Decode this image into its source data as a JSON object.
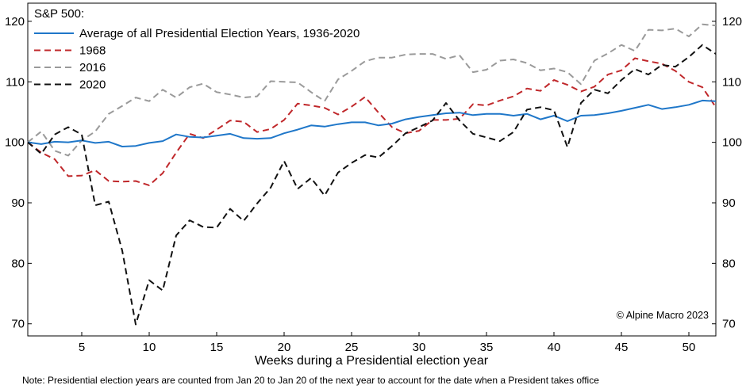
{
  "chart_data": {
    "type": "line",
    "title": "S&P 500:",
    "xlabel": "Weeks during a Presidential election year",
    "ylabel": "",
    "xlim": [
      1,
      52
    ],
    "ylim": [
      68,
      123
    ],
    "x_ticks": [
      5,
      10,
      15,
      20,
      25,
      30,
      35,
      40,
      45,
      50
    ],
    "y_ticks": [
      70,
      80,
      90,
      100,
      110,
      120
    ],
    "grid": false,
    "legend_position": "top-left",
    "copyright": "© Alpine Macro 2023",
    "note": "Note: Presidential election years are counted from Jan 20 to Jan 20 of the next year to account for the date when a President takes office",
    "series": [
      {
        "name": "Average of all Presidential Election Years, 1936-2020",
        "color": "#1f77c9",
        "dash": "solid",
        "values": [
          100,
          99.7,
          100.1,
          100,
          100.3,
          99.9,
          100.1,
          99.3,
          99.4,
          99.9,
          100.2,
          101.3,
          100.9,
          100.8,
          101.1,
          101.4,
          100.7,
          100.6,
          100.7,
          101.5,
          102.1,
          102.8,
          102.6,
          103,
          103.3,
          103.3,
          102.8,
          103.1,
          103.8,
          104.2,
          104.5,
          104.8,
          104.9,
          104.5,
          104.7,
          104.7,
          104.4,
          104.7,
          103.8,
          104.4,
          103.5,
          104.4,
          104.5,
          104.8,
          105.2,
          105.7,
          106.2,
          105.5,
          105.8,
          106.2,
          106.9,
          106.8
        ]
      },
      {
        "name": "1968",
        "color": "#c0282b",
        "dash": "dashed",
        "values": [
          100,
          98.3,
          97.2,
          94.4,
          94.5,
          95.4,
          93.6,
          93.5,
          93.6,
          92.9,
          94.9,
          98.3,
          101.4,
          100.7,
          102.1,
          103.6,
          103.4,
          101.7,
          102.2,
          103.7,
          106.4,
          106.1,
          105.7,
          104.6,
          105.9,
          107.5,
          104.9,
          102.5,
          101.5,
          101.9,
          103.7,
          103.7,
          103.9,
          106.3,
          106.1,
          106.9,
          107.6,
          108.9,
          108.5,
          110.3,
          109.5,
          108.4,
          109.2,
          111.2,
          111.9,
          113.9,
          113.4,
          113,
          111.8,
          110,
          109.1,
          105.8
        ]
      },
      {
        "name": "2016",
        "color": "#9a9a9a",
        "dash": "dashed",
        "values": [
          100,
          101.8,
          98.6,
          97.8,
          100.3,
          101.8,
          104.7,
          106,
          107.4,
          106.8,
          108.7,
          107.4,
          109.1,
          109.7,
          108.3,
          107.9,
          107.4,
          107.6,
          110.1,
          110,
          109.9,
          108.3,
          106.8,
          110.4,
          111.8,
          113.4,
          114,
          114,
          114.5,
          114.6,
          114.6,
          113.8,
          114.4,
          111.6,
          112,
          113.5,
          113.7,
          113.1,
          111.9,
          112.2,
          111.6,
          109.6,
          113.5,
          114.7,
          116.1,
          115.1,
          118.6,
          118.5,
          118.8,
          117.5,
          119.5,
          119.3
        ]
      },
      {
        "name": "2020",
        "color": "#111111",
        "dash": "dashed",
        "values": [
          100,
          98.1,
          101.3,
          102.5,
          101.3,
          89.6,
          90.2,
          82.1,
          69.9,
          77.2,
          75.5,
          84.6,
          87.1,
          86,
          85.9,
          89,
          87,
          89.9,
          92.5,
          96.9,
          92.3,
          94.1,
          91.2,
          95,
          96.6,
          97.9,
          97.5,
          99.4,
          101.5,
          102.5,
          103.6,
          106.5,
          103.6,
          101.4,
          100.8,
          100.2,
          101.7,
          105.4,
          105.8,
          105.3,
          99.2,
          106.5,
          108.7,
          108.1,
          110.3,
          112.1,
          111.2,
          112.8,
          112.5,
          114.1,
          116.1,
          114.6
        ]
      }
    ]
  }
}
